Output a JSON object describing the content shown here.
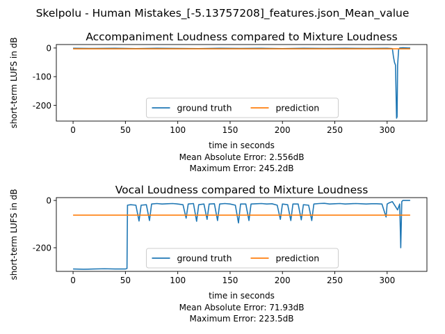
{
  "suptitle": "Skelpolu - Human Mistakes_[-5.13757208]_features.json_Mean_value",
  "colors": {
    "ground_truth": "#1f77b4",
    "prediction": "#ff7f0e"
  },
  "chart_data": [
    {
      "type": "line",
      "title": "Accompaniment Loudness compared to Mixture Loudness",
      "xlabel": "time in seconds",
      "ylabel": "short-term LUFS in dB",
      "xlim": [
        -16,
        338
      ],
      "ylim": [
        -255,
        12
      ],
      "xticks": [
        0,
        50,
        100,
        150,
        200,
        250,
        300
      ],
      "yticks": [
        0,
        -100,
        -200
      ],
      "legend": {
        "placement": "lower-center",
        "labels": [
          "ground truth",
          "prediction"
        ]
      },
      "stats": [
        "Mean Absolute Error: 2.556dB",
        "Maximum Error: 245.2dB"
      ],
      "series": [
        {
          "name": "ground truth",
          "x": [
            0,
            20,
            40,
            60,
            80,
            100,
            120,
            140,
            160,
            180,
            200,
            220,
            240,
            260,
            280,
            300,
            305,
            306,
            307,
            308,
            309,
            309.5,
            310,
            311,
            312,
            315,
            320,
            322
          ],
          "y": [
            -1,
            -1.5,
            -1,
            -2,
            -1,
            -1.5,
            -2,
            -1,
            -1.5,
            -1,
            -2,
            -1,
            -1.5,
            -1,
            -1.5,
            -1,
            -2,
            -30,
            -50,
            -60,
            -245,
            -240,
            -60,
            -5,
            0,
            1,
            0,
            0
          ]
        },
        {
          "name": "prediction",
          "x": [
            0,
            322
          ],
          "y": [
            -3,
            -3
          ]
        }
      ]
    },
    {
      "type": "line",
      "title": "Vocal Loudness compared to Mixture Loudness",
      "xlabel": "time in seconds",
      "ylabel": "short-term LUFS in dB",
      "xlim": [
        -16,
        338
      ],
      "ylim": [
        -300,
        12
      ],
      "xticks": [
        0,
        50,
        100,
        150,
        200,
        250,
        300
      ],
      "yticks": [
        0,
        -200
      ],
      "legend": {
        "placement": "lower-center",
        "labels": [
          "ground truth",
          "prediction"
        ]
      },
      "stats": [
        "Mean Absolute Error: 71.93dB",
        "Maximum Error: 223.5dB"
      ],
      "series": [
        {
          "name": "ground truth",
          "x": [
            0,
            10,
            20,
            30,
            40,
            50,
            51.5,
            52,
            55,
            60,
            63,
            65,
            70,
            73,
            75,
            80,
            85,
            90,
            95,
            100,
            105,
            108,
            110,
            115,
            118,
            120,
            125,
            128,
            130,
            135,
            138,
            140,
            145,
            150,
            155,
            158,
            160,
            165,
            168,
            170,
            175,
            180,
            185,
            190,
            195,
            198,
            200,
            205,
            208,
            210,
            215,
            218,
            220,
            225,
            228,
            230,
            235,
            240,
            245,
            250,
            255,
            260,
            265,
            270,
            275,
            280,
            285,
            290,
            295,
            299,
            300,
            302,
            305,
            310,
            312,
            313,
            314,
            315,
            320,
            322
          ],
          "y": [
            -290,
            -291,
            -290,
            -289,
            -290,
            -290,
            -288,
            -20,
            -18,
            -20,
            -87,
            -20,
            -18,
            -85,
            -15,
            -13,
            -15,
            -14,
            -13,
            -15,
            -18,
            -75,
            -15,
            -13,
            -88,
            -18,
            -15,
            -80,
            -15,
            -14,
            -85,
            -15,
            -13,
            -15,
            -20,
            -95,
            -15,
            -15,
            -85,
            -15,
            -14,
            -13,
            -15,
            -14,
            -20,
            -80,
            -15,
            -18,
            -85,
            -15,
            -15,
            -82,
            -18,
            -20,
            -85,
            -15,
            -13,
            -12,
            -15,
            -14,
            -13,
            -15,
            -14,
            -13,
            -14,
            -15,
            -14,
            -14,
            -15,
            -70,
            -15,
            -10,
            -5,
            -40,
            -15,
            -200,
            -5,
            0,
            0,
            0
          ]
        },
        {
          "name": "prediction",
          "x": [
            0,
            322
          ],
          "y": [
            -62,
            -62
          ]
        }
      ]
    }
  ]
}
